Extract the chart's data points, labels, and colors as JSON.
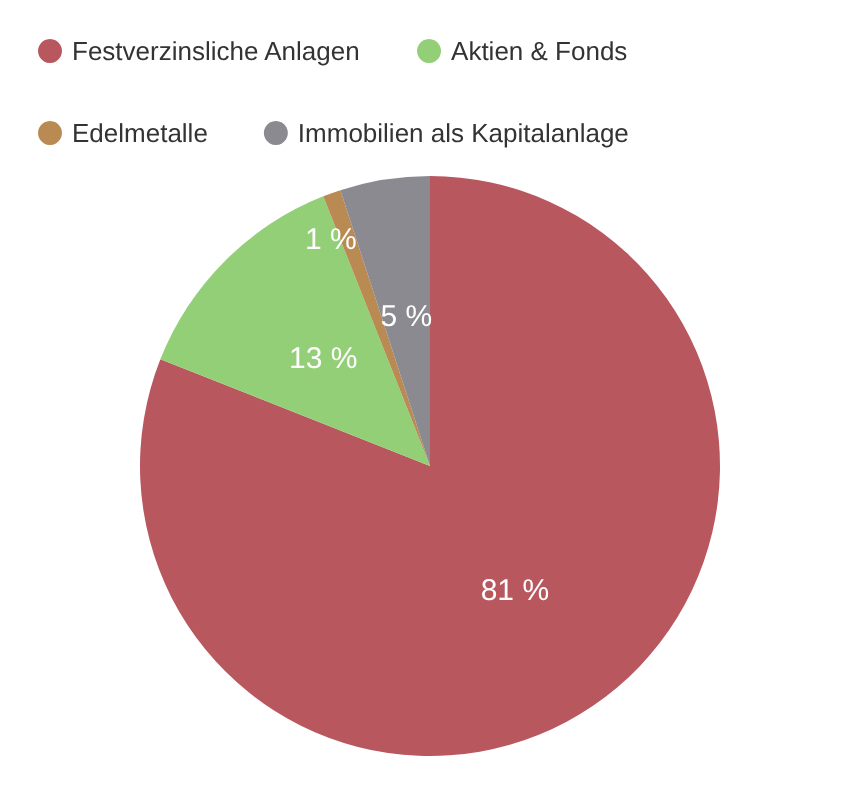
{
  "chart_data": {
    "type": "pie",
    "categories": [
      "Festverzinsliche Anlagen",
      "Aktien & Fonds",
      "Edelmetalle",
      "Immobilien als Kapitalanlage"
    ],
    "values": [
      81,
      13,
      1,
      5
    ],
    "colors": [
      "#b9575f",
      "#93cf76",
      "#b98a52",
      "#8a8a90"
    ],
    "value_labels": [
      "81 %",
      "13 %",
      "1 %",
      "5 %"
    ],
    "legend": "top left"
  }
}
